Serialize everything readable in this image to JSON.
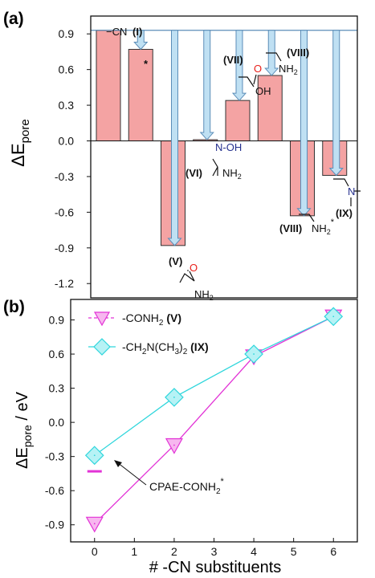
{
  "colors": {
    "bar_fill": "#f4a3a3",
    "bar_stroke": "#333333",
    "arrow_fill": "#bfe0f3",
    "arrow_stroke": "#5b8db8",
    "ref_line": "#5b8db8",
    "series_conh2": "#e233d6",
    "series_ch2n": "#2fd6dc",
    "conh2_marker_fill": "#f7b7ef",
    "ch2n_marker_fill": "#b6f2f5",
    "oxygen_red": "#e8201b",
    "nitrogen_blue": "#25308e"
  },
  "chart_data": [
    {
      "panel": "(a)",
      "type": "bar",
      "ylabel": "ΔE",
      "ylabel_sub": "pore",
      "ylim": [
        -1.32,
        1.05
      ],
      "yticks": [
        "-1.2",
        "-0.9",
        "-0.6",
        "-0.3",
        "0.0",
        "0.3",
        "0.6",
        "0.9"
      ],
      "ytick_values": [
        -1.2,
        -0.9,
        -0.6,
        -0.3,
        0.0,
        0.3,
        0.6,
        0.9
      ],
      "reference_line": 0.93,
      "bars": [
        {
          "label": "(I)",
          "value": 0.93
        },
        {
          "label": "(I)*",
          "value": 0.77
        },
        {
          "label": "(V)",
          "value": -0.88
        },
        {
          "label": "(VI)",
          "value": 0.01
        },
        {
          "label": "(VII)",
          "value": 0.34
        },
        {
          "label": "(VIII)",
          "value": 0.55
        },
        {
          "label": "(VIII)*",
          "value": -0.63
        },
        {
          "label": "(IX)",
          "value": -0.29
        }
      ],
      "annotations": {
        "cn": "−CN",
        "cn_num": "(I)",
        "star": "*",
        "v_num": "(V)",
        "v_o": "O",
        "v_nh": "NH",
        "v_sub": "2",
        "vi_num": "(VI)",
        "vi_noh": "N-OH",
        "vi_nh": "NH",
        "vi_sub": "2",
        "vii_num": "(VII)",
        "vii_o": "O",
        "vii_oh": "OH",
        "viii_num": "(VIII)",
        "viii_nh": "NH",
        "viii_sub": "2",
        "viiis_num": "(VIII)",
        "viiis_nh": "NH",
        "viiis_sub": "2",
        "viiis_star": "*",
        "ix_num": "(IX)",
        "ix_n": "N"
      }
    },
    {
      "panel": "(b)",
      "type": "line",
      "xlabel": "# -CN substituents",
      "ylabel": "ΔE",
      "ylabel_sub": "pore",
      "ylabel_unit": " / eV",
      "xlim": [
        -0.6,
        6.6
      ],
      "ylim": [
        -1.05,
        1.08
      ],
      "xticks": [
        "0",
        "1",
        "2",
        "3",
        "4",
        "5",
        "6"
      ],
      "xtick_values": [
        0,
        1,
        2,
        3,
        4,
        5,
        6
      ],
      "yticks": [
        "-0.9",
        "-0.6",
        "-0.3",
        "0.0",
        "0.3",
        "0.6",
        "0.9"
      ],
      "ytick_values": [
        -0.9,
        -0.6,
        -0.3,
        0.0,
        0.3,
        0.6,
        0.9
      ],
      "series": [
        {
          "name": "-CONH",
          "name_sub": "2",
          "name_bold": " (V)",
          "x": [
            0,
            2,
            4,
            6
          ],
          "y": [
            -0.89,
            -0.2,
            0.58,
            0.93
          ]
        },
        {
          "name": "-CH",
          "name_sub": "2",
          "name_mid": "N(CH",
          "name_sub2": "3",
          "name_end": ")",
          "name_sub3": "2",
          "name_bold": " (IX)",
          "x": [
            0,
            2,
            4,
            6
          ],
          "y": [
            -0.29,
            0.22,
            0.6,
            0.93
          ]
        }
      ],
      "reference_marker": {
        "x": 0,
        "y": -0.43
      },
      "annotation": "CPAE-CONH",
      "annotation_sub": "2",
      "annotation_sup": "*"
    }
  ]
}
